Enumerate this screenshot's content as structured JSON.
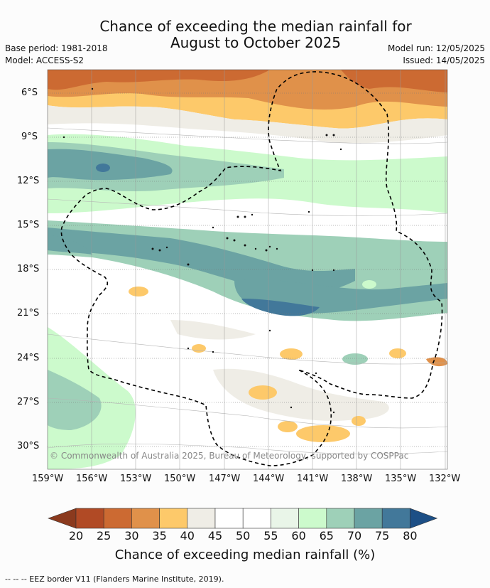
{
  "title_line1": "Chance of exceeding the median rainfall for",
  "title_line2": "August to October 2025",
  "meta": {
    "base_period": "Base period: 1981-2018",
    "model": "Model: ACCESS-S2",
    "model_run": "Model run: 12/05/2025",
    "issued": "Issued: 14/05/2025"
  },
  "lat_ticks": [
    "6°S",
    "9°S",
    "12°S",
    "15°S",
    "18°S",
    "21°S",
    "24°S",
    "27°S",
    "30°S"
  ],
  "lon_ticks": [
    "159°W",
    "156°W",
    "153°W",
    "150°W",
    "147°W",
    "144°W",
    "141°W",
    "138°W",
    "135°W",
    "132°W"
  ],
  "copyright": "© Commonwealth of Australia 2025, Bureau of Meteorology, supported by COSPPac",
  "colorbar": {
    "labels": [
      "20",
      "25",
      "30",
      "35",
      "40",
      "45",
      "50",
      "55",
      "60",
      "65",
      "70",
      "75",
      "80"
    ],
    "colors": [
      "#8b3a1e",
      "#b14a25",
      "#cc6a32",
      "#e0914a",
      "#fdc96a",
      "#efede6",
      "#ffffff",
      "#ffffff",
      "#e9f5e8",
      "#ccfacc",
      "#9ed0b8",
      "#6ba3a3",
      "#42789a",
      "#1d4f86"
    ],
    "title": "Chance of exceeding median rainfall (%)"
  },
  "footer": "--  --  -- EEZ border V11 (Flanders Marine Institute, 2019)."
}
